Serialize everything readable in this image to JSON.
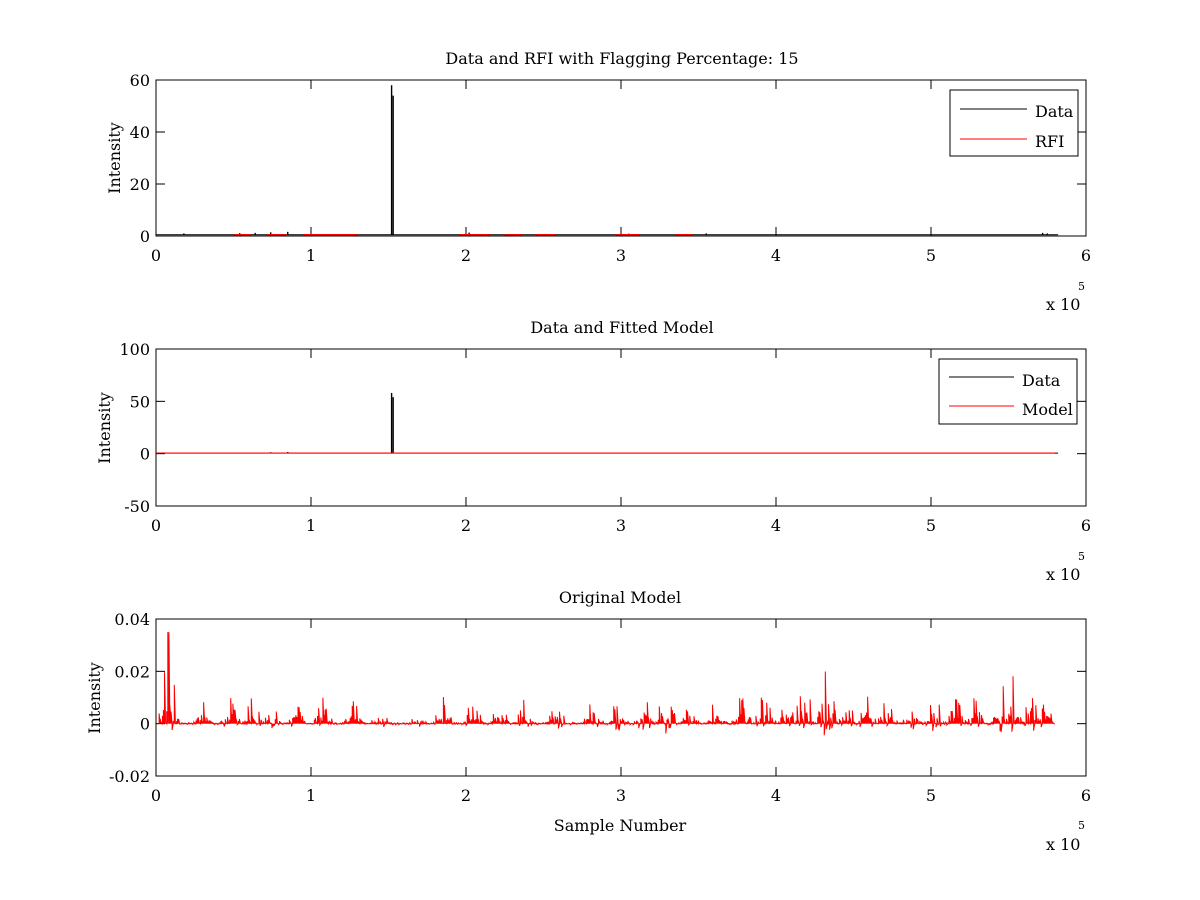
{
  "colors": {
    "data": "#000000",
    "rfi": "#ff0000",
    "model": "#ff0000",
    "original_model": "#ff0000",
    "axes": "#000000",
    "background": "#ffffff"
  },
  "chart_data": [
    {
      "type": "line",
      "title": "Data and RFI with Flagging Percentage: 15",
      "xlabel": "",
      "ylabel": "Intensity",
      "xlim": [
        0,
        600000
      ],
      "ylim": [
        0,
        60
      ],
      "xticks": [
        0,
        1,
        2,
        3,
        4,
        5,
        6
      ],
      "yticks": [
        0,
        20,
        40,
        60
      ],
      "x_multiplier_base": "x 10",
      "x_multiplier_exp": "5",
      "grid": false,
      "legend_position": "top-right",
      "legend": [
        "Data",
        "RFI"
      ],
      "series": [
        {
          "name": "Data",
          "color": "#000000",
          "baseline": 0.5,
          "spikes": [
            [
              18000,
              1.0
            ],
            [
              54000,
              1.1
            ],
            [
              64000,
              1.2
            ],
            [
              74000,
              1.4
            ],
            [
              85000,
              1.6
            ],
            [
              152000,
              58
            ],
            [
              153000,
              54
            ],
            [
              202000,
              1.3
            ],
            [
              305000,
              0.9
            ],
            [
              355000,
              1.0
            ],
            [
              572000,
              1.2
            ],
            [
              575000,
              1.0
            ]
          ]
        },
        {
          "name": "RFI",
          "color": "#ff0000",
          "segments": [
            [
              50000,
              61000,
              0.5
            ],
            [
              72000,
              84000,
              0.5
            ],
            [
              95000,
              130000,
              0.5
            ],
            [
              196000,
              215000,
              0.5
            ],
            [
              225000,
              236000,
              0.5
            ],
            [
              245000,
              258000,
              0.5
            ],
            [
              297000,
              312000,
              0.5
            ],
            [
              335000,
              346000,
              0.5
            ]
          ]
        }
      ]
    },
    {
      "type": "line",
      "title": "Data and Fitted Model",
      "xlabel": "",
      "ylabel": "Intensity",
      "xlim": [
        0,
        600000
      ],
      "ylim": [
        -50,
        100
      ],
      "xticks": [
        0,
        1,
        2,
        3,
        4,
        5,
        6
      ],
      "yticks": [
        -50,
        0,
        50,
        100
      ],
      "x_multiplier_base": "x 10",
      "x_multiplier_exp": "5",
      "grid": false,
      "legend_position": "top-right",
      "legend": [
        "Data",
        "Model"
      ],
      "series": [
        {
          "name": "Data",
          "color": "#000000",
          "baseline": 0.5,
          "spikes": [
            [
              18000,
              1.0
            ],
            [
              54000,
              1.1
            ],
            [
              74000,
              1.4
            ],
            [
              85000,
              1.6
            ],
            [
              152000,
              58
            ],
            [
              153000,
              54
            ],
            [
              305000,
              1.0
            ]
          ]
        },
        {
          "name": "Model",
          "color": "#ff0000",
          "baseline": 0.6,
          "x_end": 580000
        }
      ]
    },
    {
      "type": "line",
      "title": "Original Model",
      "xlabel": "Sample Number",
      "ylabel": "Intensity",
      "xlim": [
        0,
        600000
      ],
      "ylim": [
        -0.02,
        0.04
      ],
      "xticks": [
        0,
        1,
        2,
        3,
        4,
        5,
        6
      ],
      "yticks": [
        -0.02,
        0,
        0.02,
        0.04
      ],
      "ytick_labels": [
        "-0.02",
        "0",
        "0.02",
        "0.04"
      ],
      "x_multiplier_base": "x 10",
      "x_multiplier_exp": "5",
      "grid": false,
      "legend_position": "none",
      "series": [
        {
          "name": "Original Model",
          "color": "#ff0000",
          "x_start": 2000,
          "x_end": 580000,
          "baseline": 0.0,
          "max_spike": 0.035,
          "max_spike_x": 8000,
          "bursts": [
            [
              3000,
              0.009
            ],
            [
              8000,
              0.035
            ],
            [
              30000,
              0.013
            ],
            [
              48000,
              0.012
            ],
            [
              62000,
              0.013
            ],
            [
              75000,
              0.009
            ],
            [
              90000,
              0.01
            ],
            [
              108000,
              0.011
            ],
            [
              128000,
              0.012
            ],
            [
              145000,
              0.01
            ],
            [
              168000,
              0.009
            ],
            [
              185000,
              0.011
            ],
            [
              205000,
              0.013
            ],
            [
              222000,
              0.012
            ],
            [
              238000,
              0.011
            ],
            [
              258000,
              0.012
            ],
            [
              282000,
              0.014
            ],
            [
              298000,
              0.013
            ],
            [
              315000,
              0.014
            ],
            [
              329000,
              0.02
            ],
            [
              345000,
              0.012
            ],
            [
              362000,
              0.013
            ],
            [
              378000,
              0.014
            ],
            [
              392000,
              0.015
            ],
            [
              406000,
              0.014
            ],
            [
              418000,
              0.025
            ],
            [
              433000,
              0.025
            ],
            [
              445000,
              0.013
            ],
            [
              458000,
              0.014
            ],
            [
              472000,
              0.013
            ],
            [
              488000,
              0.015
            ],
            [
              502000,
              0.014
            ],
            [
              516000,
              0.013
            ],
            [
              528000,
              0.012
            ],
            [
              546000,
              0.016
            ],
            [
              552000,
              0.022
            ],
            [
              565000,
              0.018
            ],
            [
              574000,
              0.01
            ]
          ]
        }
      ]
    }
  ]
}
